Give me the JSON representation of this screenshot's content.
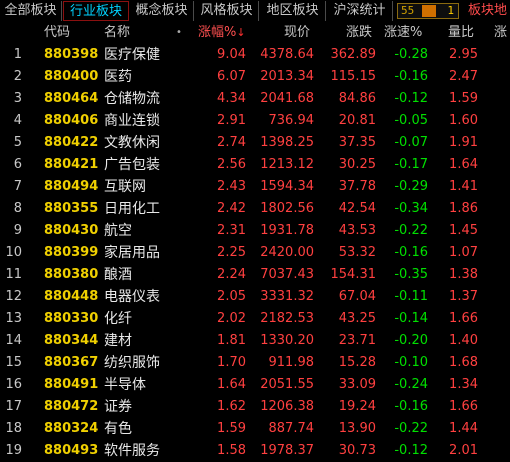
{
  "tabs": [
    {
      "label": "全部板块",
      "active": false
    },
    {
      "label": "行业板块",
      "active": true
    },
    {
      "label": "概念板块",
      "active": false
    },
    {
      "label": "风格板块",
      "active": false
    },
    {
      "label": "地区板块",
      "active": false
    },
    {
      "label": "沪深统计",
      "active": false
    }
  ],
  "counter": {
    "left": "55",
    "right": "1",
    "fill_fraction": 0.4
  },
  "tab_extra": "板块地",
  "header": {
    "code": "代码",
    "name": "名称",
    "name_dot": "•",
    "change_pct": "涨幅%",
    "price": "现价",
    "change": "涨跌",
    "speed": "涨速%",
    "volume_ratio": "量比",
    "extra": "涨"
  },
  "rows": [
    {
      "idx": "1",
      "code": "880398",
      "name": "医疗保健",
      "chg": "9.04",
      "price": "4378.64",
      "up": "362.89",
      "spd": "-0.28",
      "vr": "2.95"
    },
    {
      "idx": "2",
      "code": "880400",
      "name": "医药",
      "chg": "6.07",
      "price": "2013.34",
      "up": "115.15",
      "spd": "-0.16",
      "vr": "2.47"
    },
    {
      "idx": "3",
      "code": "880464",
      "name": "仓储物流",
      "chg": "4.34",
      "price": "2041.68",
      "up": "84.86",
      "spd": "-0.12",
      "vr": "1.59"
    },
    {
      "idx": "4",
      "code": "880406",
      "name": "商业连锁",
      "chg": "2.91",
      "price": "736.94",
      "up": "20.81",
      "spd": "-0.05",
      "vr": "1.60"
    },
    {
      "idx": "5",
      "code": "880422",
      "name": "文教休闲",
      "chg": "2.74",
      "price": "1398.25",
      "up": "37.35",
      "spd": "-0.07",
      "vr": "1.91"
    },
    {
      "idx": "6",
      "code": "880421",
      "name": "广告包装",
      "chg": "2.56",
      "price": "1213.12",
      "up": "30.25",
      "spd": "-0.17",
      "vr": "1.64"
    },
    {
      "idx": "7",
      "code": "880494",
      "name": "互联网",
      "chg": "2.43",
      "price": "1594.34",
      "up": "37.78",
      "spd": "-0.29",
      "vr": "1.41"
    },
    {
      "idx": "8",
      "code": "880355",
      "name": "日用化工",
      "chg": "2.42",
      "price": "1802.56",
      "up": "42.54",
      "spd": "-0.34",
      "vr": "1.86"
    },
    {
      "idx": "9",
      "code": "880430",
      "name": "航空",
      "chg": "2.31",
      "price": "1931.78",
      "up": "43.53",
      "spd": "-0.22",
      "vr": "1.45"
    },
    {
      "idx": "10",
      "code": "880399",
      "name": "家居用品",
      "chg": "2.25",
      "price": "2420.00",
      "up": "53.32",
      "spd": "-0.16",
      "vr": "1.07"
    },
    {
      "idx": "11",
      "code": "880380",
      "name": "酿酒",
      "chg": "2.24",
      "price": "7037.43",
      "up": "154.31",
      "spd": "-0.35",
      "vr": "1.38"
    },
    {
      "idx": "12",
      "code": "880448",
      "name": "电器仪表",
      "chg": "2.05",
      "price": "3331.32",
      "up": "67.04",
      "spd": "-0.11",
      "vr": "1.37"
    },
    {
      "idx": "13",
      "code": "880330",
      "name": "化纤",
      "chg": "2.02",
      "price": "2182.53",
      "up": "43.25",
      "spd": "-0.14",
      "vr": "1.66"
    },
    {
      "idx": "14",
      "code": "880344",
      "name": "建材",
      "chg": "1.81",
      "price": "1330.20",
      "up": "23.71",
      "spd": "-0.20",
      "vr": "1.40"
    },
    {
      "idx": "15",
      "code": "880367",
      "name": "纺织服饰",
      "chg": "1.70",
      "price": "911.98",
      "up": "15.28",
      "spd": "-0.10",
      "vr": "1.68"
    },
    {
      "idx": "16",
      "code": "880491",
      "name": "半导体",
      "chg": "1.64",
      "price": "2051.55",
      "up": "33.09",
      "spd": "-0.24",
      "vr": "1.34"
    },
    {
      "idx": "17",
      "code": "880472",
      "name": "证券",
      "chg": "1.62",
      "price": "1206.38",
      "up": "19.24",
      "spd": "-0.16",
      "vr": "1.66"
    },
    {
      "idx": "18",
      "code": "880324",
      "name": "有色",
      "chg": "1.59",
      "price": "887.74",
      "up": "13.90",
      "spd": "-0.22",
      "vr": "1.44"
    },
    {
      "idx": "19",
      "code": "880493",
      "name": "软件服务",
      "chg": "1.58",
      "price": "1978.37",
      "up": "30.73",
      "spd": "-0.12",
      "vr": "2.01"
    }
  ]
}
